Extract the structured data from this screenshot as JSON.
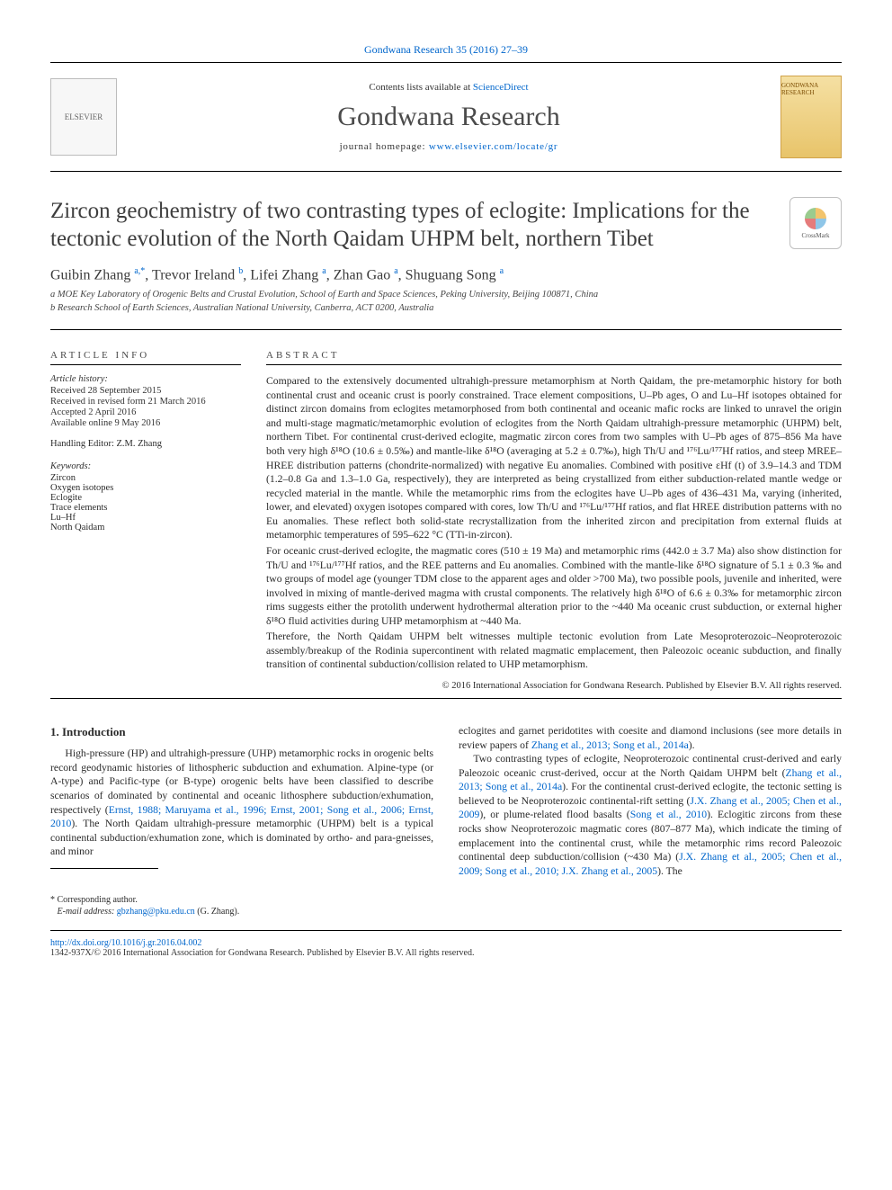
{
  "meta": {
    "citation_line": "Gondwana Research 35 (2016) 27–39",
    "contents_prefix": "Contents lists available at ",
    "contents_link": "ScienceDirect",
    "journal_title": "Gondwana Research",
    "homepage_prefix": "journal homepage: ",
    "homepage_link": "www.elsevier.com/locate/gr",
    "elsevier_label": "ELSEVIER",
    "cover_label": "GONDWANA RESEARCH",
    "crossmark_label": "CrossMark"
  },
  "article": {
    "title": "Zircon geochemistry of two contrasting types of eclogite: Implications for the tectonic evolution of the North Qaidam UHPM belt, northern Tibet",
    "authors_html": "Guibin Zhang <sup>a,*</sup>, Trevor Ireland <sup>b</sup>, Lifei Zhang <sup>a</sup>, Zhan Gao <sup>a</sup>, Shuguang Song <sup>a</sup>",
    "affiliations": [
      "a  MOE Key Laboratory of Orogenic Belts and Crustal Evolution, School of Earth and Space Sciences, Peking University, Beijing 100871, China",
      "b  Research School of Earth Sciences, Australian National University, Canberra, ACT 0200, Australia"
    ]
  },
  "info": {
    "heading": "ARTICLE INFO",
    "history_label": "Article history:",
    "history_lines": [
      "Received 28 September 2015",
      "Received in revised form 21 March 2016",
      "Accepted 2 April 2016",
      "Available online 9 May 2016"
    ],
    "editor_line": "Handling Editor: Z.M. Zhang",
    "keywords_label": "Keywords:",
    "keywords": [
      "Zircon",
      "Oxygen isotopes",
      "Eclogite",
      "Trace elements",
      "Lu–Hf",
      "North Qaidam"
    ]
  },
  "abstract": {
    "heading": "ABSTRACT",
    "paragraphs": [
      "Compared to the extensively documented ultrahigh-pressure metamorphism at North Qaidam, the pre-metamorphic history for both continental crust and oceanic crust is poorly constrained. Trace element compositions, U–Pb ages, O and Lu–Hf isotopes obtained for distinct zircon domains from eclogites metamorphosed from both continental and oceanic mafic rocks are linked to unravel the origin and multi-stage magmatic/metamorphic evolution of eclogites from the North Qaidam ultrahigh-pressure metamorphic (UHPM) belt, northern Tibet. For continental crust-derived eclogite, magmatic zircon cores from two samples with U–Pb ages of 875–856 Ma have both very high δ¹⁸O (10.6 ± 0.5‰) and mantle-like δ¹⁸O (averaging at 5.2 ± 0.7‰), high Th/U and ¹⁷⁶Lu/¹⁷⁷Hf ratios, and steep MREE–HREE distribution patterns (chondrite-normalized) with negative Eu anomalies. Combined with positive εHf (t) of 3.9–14.3 and TDM (1.2–0.8 Ga and 1.3–1.0 Ga, respectively), they are interpreted as being crystallized from either subduction-related mantle wedge or recycled material in the mantle. While the metamorphic rims from the eclogites have U–Pb ages of 436–431 Ma, varying (inherited, lower, and elevated) oxygen isotopes compared with cores, low Th/U and ¹⁷⁶Lu/¹⁷⁷Hf ratios, and flat HREE distribution patterns with no Eu anomalies. These reflect both solid-state recrystallization from the inherited zircon and precipitation from external fluids at metamorphic temperatures of 595–622 °C (TTi-in-zircon).",
      "For oceanic crust-derived eclogite, the magmatic cores (510 ± 19 Ma) and metamorphic rims (442.0 ± 3.7 Ma) also show distinction for Th/U and ¹⁷⁶Lu/¹⁷⁷Hf ratios, and the REE patterns and Eu anomalies. Combined with the mantle-like δ¹⁸O signature of 5.1 ± 0.3 ‰ and two groups of model age (younger TDM close to the apparent ages and older >700 Ma), two possible pools, juvenile and inherited, were involved in mixing of mantle-derived magma with crustal components. The relatively high δ¹⁸O of 6.6 ± 0.3‰ for metamorphic zircon rims suggests either the protolith underwent hydrothermal alteration prior to the ~440 Ma oceanic crust subduction, or external higher δ¹⁸O fluid activities during UHP metamorphism at ~440 Ma.",
      "Therefore, the North Qaidam UHPM belt witnesses multiple tectonic evolution from Late Mesoproterozoic–Neoproterozoic assembly/breakup of the Rodinia supercontinent with related magmatic emplacement, then Paleozoic oceanic subduction, and finally transition of continental subduction/collision related to UHP metamorphism."
    ],
    "copyright": "© 2016 International Association for Gondwana Research. Published by Elsevier B.V. All rights reserved."
  },
  "body": {
    "section_number": "1.",
    "section_title": "Introduction",
    "left_para_html": "High-pressure (HP) and ultrahigh-pressure (UHP) metamorphic rocks in orogenic belts record geodynamic histories of lithospheric subduction and exhumation. Alpine-type (or A-type) and Pacific-type (or B-type) orogenic belts have been classified to describe scenarios of dominated by continental and oceanic lithosphere subduction/exhumation, respectively (<span class='bluelink'>Ernst, 1988; Maruyama et al., 1996; Ernst, 2001; Song et al., 2006; Ernst, 2010</span>). The North Qaidam ultrahigh-pressure metamorphic (UHPM) belt is a typical continental subduction/exhumation zone, which is dominated by ortho- and para-gneisses, and minor",
    "right_p1_html": "eclogites and garnet peridotites with coesite and diamond inclusions (see more details in review papers of <span class='bluelink'>Zhang et al., 2013; Song et al., 2014a</span>).",
    "right_p2_html": "Two contrasting types of eclogite, Neoproterozoic continental crust-derived and early Paleozoic oceanic crust-derived, occur at the North Qaidam UHPM belt (<span class='bluelink'>Zhang et al., 2013; Song et al., 2014a</span>). For the continental crust-derived eclogite, the tectonic setting is believed to be Neoproterozoic continental-rift setting (<span class='bluelink'>J.X. Zhang et al., 2005; Chen et al., 2009</span>), or plume-related flood basalts (<span class='bluelink'>Song et al., 2010</span>). Eclogitic zircons from these rocks show Neoproterozoic magmatic cores (807–877 Ma), which indicate the timing of emplacement into the continental crust, while the metamorphic rims record Paleozoic continental deep subduction/collision (~430 Ma) (<span class='bluelink'>J.X. Zhang et al., 2005; Chen et al., 2009; Song et al., 2010; J.X. Zhang et al., 2005</span>). The"
  },
  "corresponding": {
    "star": "*",
    "label": "Corresponding author.",
    "email_label": "E-mail address:",
    "email": "gbzhang@pku.edu.cn",
    "name_paren": "(G. Zhang)."
  },
  "footer": {
    "doi": "http://dx.doi.org/10.1016/j.gr.2016.04.002",
    "issn_line": "1342-937X/© 2016 International Association for Gondwana Research. Published by Elsevier B.V. All rights reserved."
  },
  "colors": {
    "link": "#0066cc",
    "text": "#2b2b2b",
    "muted": "#4a4a4a"
  }
}
